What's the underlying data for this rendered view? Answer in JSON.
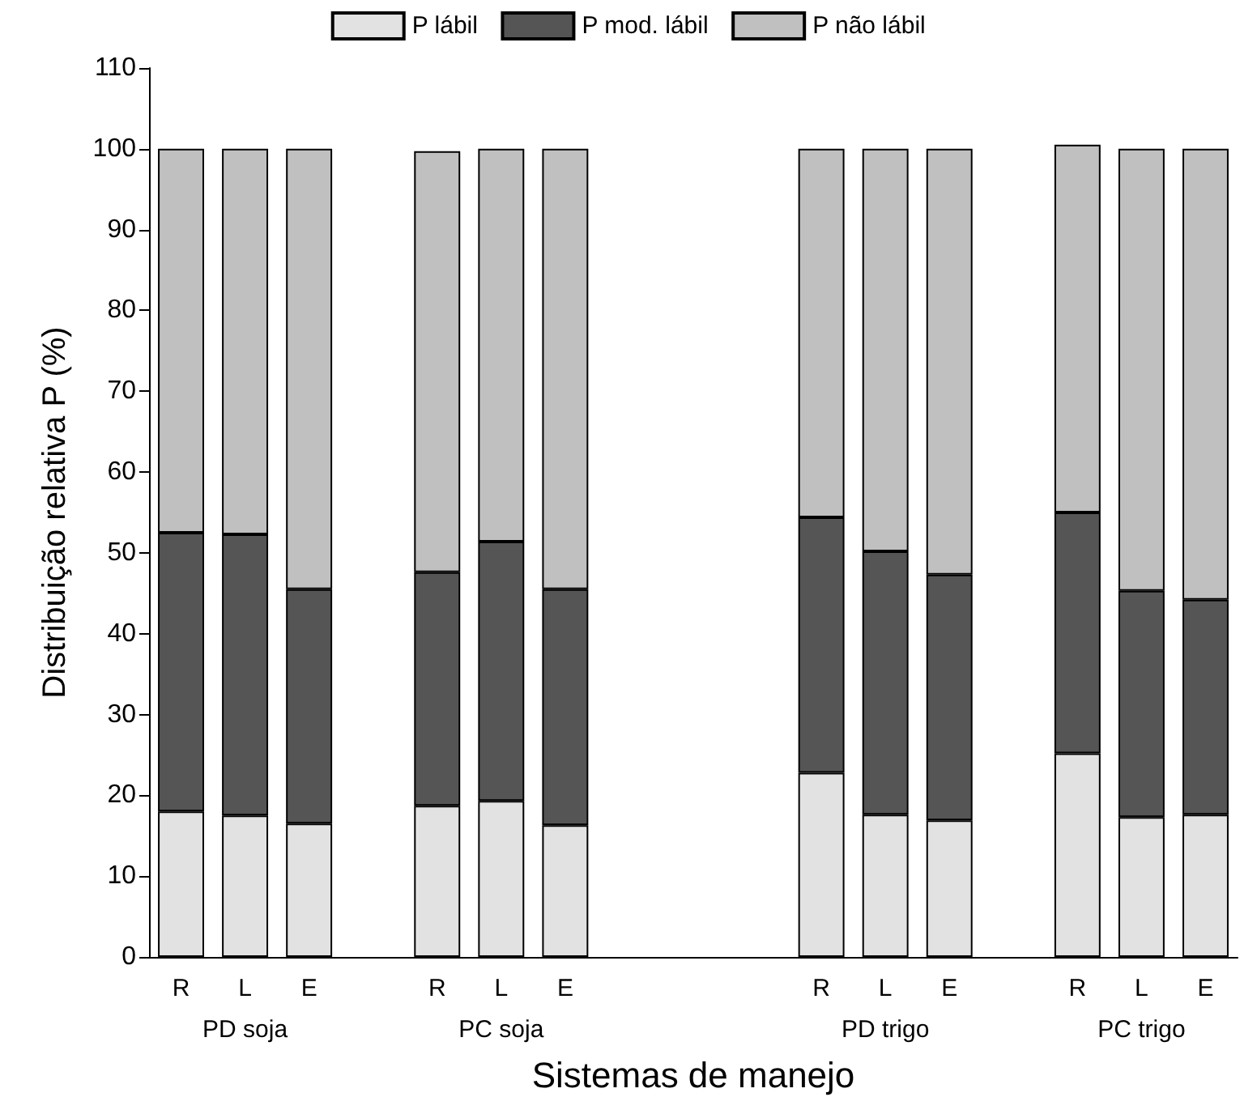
{
  "chart_data": {
    "type": "bar",
    "stacked": true,
    "xlabel": "Sistemas de manejo",
    "ylabel": "Distribuição relativa P (%)",
    "categories": [
      "R",
      "L",
      "E",
      null,
      "R",
      "L",
      "E",
      null,
      null,
      null,
      "R",
      "L",
      "E",
      null,
      "R",
      "L",
      "E"
    ],
    "series": [
      {
        "name": "P lábil",
        "color": "#e2e2e2",
        "values": [
          18,
          17.5,
          16.5,
          null,
          18.7,
          19.3,
          16.3,
          null,
          null,
          null,
          22.8,
          17.6,
          16.9,
          null,
          25.2,
          17.3,
          17.6
        ]
      },
      {
        "name": "P mod. lábil",
        "color": "#555555",
        "values": [
          34.5,
          34.8,
          29,
          null,
          28.9,
          32.1,
          29.2,
          null,
          null,
          null,
          31.6,
          32.6,
          30.4,
          null,
          29.8,
          28,
          26.6
        ]
      },
      {
        "name": "P não lábil",
        "color": "#c0c0c0",
        "values": [
          47.5,
          47.7,
          54.5,
          null,
          52.1,
          48.6,
          54.5,
          null,
          null,
          null,
          45.6,
          49.8,
          52.7,
          null,
          45.5,
          54.7,
          55.8
        ]
      }
    ],
    "annotations": [
      "PD soja",
      "PC soja",
      "PD trigo",
      "PC trigo"
    ],
    "ylim": [
      0,
      110
    ],
    "yticks": [
      0,
      10,
      20,
      30,
      40,
      50,
      60,
      70,
      80,
      90,
      100,
      110
    ],
    "grid": false,
    "legend": "top"
  }
}
